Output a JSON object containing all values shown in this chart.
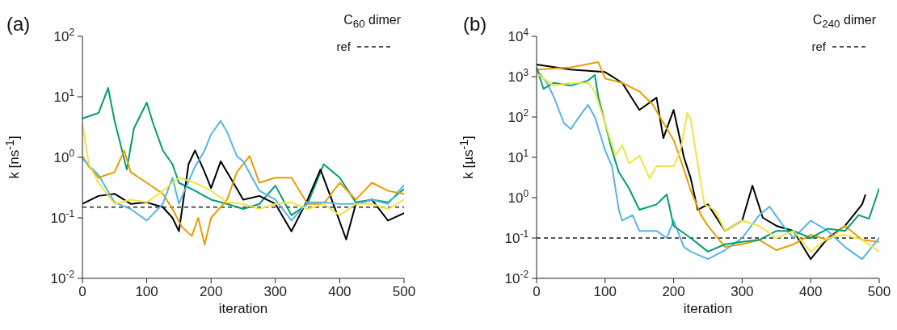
{
  "chart_data": [
    {
      "type": "line",
      "title": "(a)",
      "subtitle": "C$_{60}$ dimer",
      "xlabel": "iteration",
      "ylabel": "k [ns$^{-1}$]",
      "log": "y",
      "xlim": [
        0,
        500
      ],
      "xticks": [
        0,
        100,
        200,
        300,
        400,
        500
      ],
      "ylim": [
        0.01,
        100
      ],
      "yticks": [
        {
          "value": 0.01,
          "label": "10$^{-2}$"
        },
        {
          "value": 0.1,
          "label": "10$^{-1}$"
        },
        {
          "value": 1,
          "label": "10$^{0}$"
        },
        {
          "value": 10,
          "label": "10$^{1}$"
        },
        {
          "value": 100,
          "label": "10$^{2}$"
        }
      ],
      "legend": "top right",
      "marker": "none",
      "line_style": "solid",
      "ref_lines": [
        {
          "axis": "y",
          "value": 0.15,
          "label": "ref",
          "color": "#555555",
          "line_style": "dashed"
        }
      ],
      "series": [
        {
          "color": "#009e73",
          "x": [
            0,
            25,
            40,
            50,
            69,
            80,
            100,
            110,
            125,
            140,
            150,
            175,
            200,
            225,
            250,
            275,
            300,
            325,
            350,
            375,
            400,
            425,
            450,
            475,
            500
          ],
          "values": [
            4.4,
            5.4,
            14,
            4,
            0.63,
            3,
            8,
            3.6,
            1.3,
            0.77,
            0.38,
            0.28,
            0.2,
            0.17,
            0.14,
            0.17,
            0.34,
            0.11,
            0.17,
            0.77,
            0.46,
            0.18,
            0.2,
            0.18,
            0.3
          ]
        },
        {
          "color": "#000000",
          "x": [
            0,
            25,
            50,
            75,
            100,
            125,
            140,
            150,
            165,
            175,
            190,
            200,
            215,
            230,
            250,
            275,
            300,
            325,
            350,
            370,
            390,
            410,
            425,
            450,
            475,
            500
          ],
          "values": [
            0.17,
            0.23,
            0.25,
            0.17,
            0.18,
            0.15,
            0.1,
            0.06,
            0.77,
            1.3,
            0.57,
            0.31,
            0.86,
            0.46,
            0.2,
            0.23,
            0.17,
            0.06,
            0.2,
            0.63,
            0.17,
            0.044,
            0.17,
            0.2,
            0.09,
            0.12
          ]
        },
        {
          "color": "#e69f00",
          "x": [
            0,
            10,
            25,
            50,
            65,
            75,
            100,
            125,
            140,
            155,
            170,
            180,
            190,
            200,
            225,
            240,
            260,
            275,
            300,
            325,
            350,
            375,
            400,
            425,
            450,
            475,
            500
          ],
          "values": [
            1.05,
            0.7,
            0.46,
            0.57,
            1.3,
            0.57,
            0.38,
            0.25,
            0.14,
            0.07,
            0.05,
            0.1,
            0.036,
            0.1,
            0.2,
            0.57,
            1.05,
            0.38,
            0.46,
            0.46,
            0.17,
            0.17,
            0.38,
            0.2,
            0.38,
            0.28,
            0.25
          ]
        },
        {
          "color": "#56b4e9",
          "x": [
            0,
            25,
            50,
            75,
            100,
            125,
            140,
            150,
            175,
            190,
            200,
            215,
            225,
            240,
            250,
            275,
            300,
            325,
            350,
            375,
            400,
            425,
            450,
            475,
            500
          ],
          "values": [
            0.95,
            0.51,
            0.18,
            0.14,
            0.09,
            0.17,
            0.46,
            0.17,
            0.7,
            1.3,
            2.4,
            4,
            2.6,
            1.05,
            0.86,
            0.28,
            0.2,
            0.09,
            0.18,
            0.18,
            0.17,
            0.17,
            0.2,
            0.17,
            0.35
          ]
        },
        {
          "color": "#f0e442",
          "x": [
            0,
            10,
            25,
            50,
            75,
            100,
            125,
            150,
            175,
            200,
            225,
            250,
            275,
            300,
            325,
            350,
            375,
            400,
            425,
            450,
            475,
            500
          ],
          "values": [
            3.6,
            0.77,
            0.38,
            0.17,
            0.2,
            0.18,
            0.28,
            0.46,
            0.38,
            0.28,
            0.18,
            0.17,
            0.14,
            0.17,
            0.18,
            0.14,
            0.17,
            0.11,
            0.17,
            0.17,
            0.14,
            0.2
          ]
        }
      ]
    },
    {
      "type": "line",
      "title": "(b)",
      "subtitle": "C$_{240}$ dimer",
      "xlabel": "iteration",
      "ylabel": "k [µs$^{-1}$]",
      "log": "y",
      "xlim": [
        0,
        500
      ],
      "xticks": [
        0,
        100,
        200,
        300,
        400,
        500
      ],
      "ylim": [
        0.01,
        10000
      ],
      "yticks": [
        {
          "value": 0.01,
          "label": "10$^{-2}$"
        },
        {
          "value": 0.1,
          "label": "10$^{-1}$"
        },
        {
          "value": 1,
          "label": "10$^{0}$"
        },
        {
          "value": 10,
          "label": "10$^{1}$"
        },
        {
          "value": 100,
          "label": "10$^{2}$"
        },
        {
          "value": 1000,
          "label": "10$^{3}$"
        },
        {
          "value": 10000,
          "label": "10$^{4}$"
        }
      ],
      "legend": "top right",
      "marker": "none",
      "line_style": "solid",
      "ref_lines": [
        {
          "axis": "y",
          "value": 0.1,
          "label": "ref",
          "color": "#555555",
          "line_style": "dashed"
        }
      ],
      "series": [
        {
          "color": "#000000",
          "x": [
            0,
            50,
            100,
            125,
            150,
            175,
            185,
            200,
            215,
            225,
            235,
            250,
            275,
            300,
            315,
            330,
            350,
            375,
            400,
            425,
            450,
            475,
            480
          ],
          "values": [
            2000,
            1500,
            1300,
            700,
            150,
            300,
            30,
            150,
            10,
            3,
            0.5,
            0.68,
            0.15,
            0.27,
            2,
            0.32,
            0.2,
            0.15,
            0.03,
            0.1,
            0.2,
            0.68,
            1.2
          ]
        },
        {
          "color": "#e69f00",
          "x": [
            0,
            50,
            90,
            100,
            125,
            150,
            170,
            180,
            200,
            215,
            225,
            240,
            250,
            275,
            300,
            325,
            350,
            375,
            400,
            425,
            450,
            475,
            500
          ],
          "values": [
            1500,
            1700,
            2300,
            900,
            700,
            430,
            200,
            100,
            27,
            5,
            1.5,
            0.37,
            0.2,
            0.06,
            0.07,
            0.09,
            0.05,
            0.07,
            0.12,
            0.09,
            0.2,
            0.09,
            0.08
          ]
        },
        {
          "color": "#56b4e9",
          "x": [
            0,
            15,
            25,
            40,
            50,
            60,
            75,
            85,
            100,
            110,
            120,
            125,
            140,
            150,
            175,
            190,
            200,
            215,
            225,
            250,
            275,
            300,
            325,
            340,
            360,
            375,
            400,
            425,
            450,
            475,
            500
          ],
          "values": [
            1500,
            700,
            320,
            70,
            50,
            90,
            200,
            100,
            15,
            6,
            0.5,
            0.27,
            0.37,
            0.15,
            0.15,
            0.1,
            0.27,
            0.06,
            0.046,
            0.03,
            0.05,
            0.1,
            0.37,
            0.6,
            0.2,
            0.1,
            0.27,
            0.15,
            0.06,
            0.03,
            0.1
          ]
        },
        {
          "color": "#009e73",
          "x": [
            0,
            10,
            25,
            50,
            75,
            85,
            90,
            100,
            110,
            120,
            135,
            150,
            175,
            190,
            200,
            225,
            250,
            275,
            300,
            325,
            350,
            375,
            400,
            425,
            450,
            470,
            485,
            500
          ],
          "values": [
            1700,
            500,
            700,
            600,
            800,
            1100,
            320,
            70,
            15,
            4.3,
            1.7,
            0.5,
            0.68,
            1.2,
            0.2,
            0.1,
            0.046,
            0.07,
            0.08,
            0.09,
            0.15,
            0.15,
            0.1,
            0.17,
            0.15,
            0.37,
            0.3,
            1.7
          ]
        },
        {
          "color": "#f0e442",
          "x": [
            0,
            25,
            50,
            75,
            85,
            100,
            115,
            125,
            135,
            150,
            165,
            175,
            190,
            200,
            210,
            220,
            225,
            235,
            245,
            260,
            275,
            300,
            325,
            350,
            375,
            400,
            425,
            450,
            475,
            500
          ],
          "values": [
            1200,
            600,
            700,
            700,
            430,
            70,
            11,
            20,
            7,
            11,
            3,
            6,
            6,
            6,
            15,
            126,
            90,
            7,
            0.68,
            0.5,
            0.15,
            0.27,
            0.2,
            0.1,
            0.15,
            0.046,
            0.1,
            0.12,
            0.09,
            0.046
          ]
        }
      ]
    }
  ]
}
